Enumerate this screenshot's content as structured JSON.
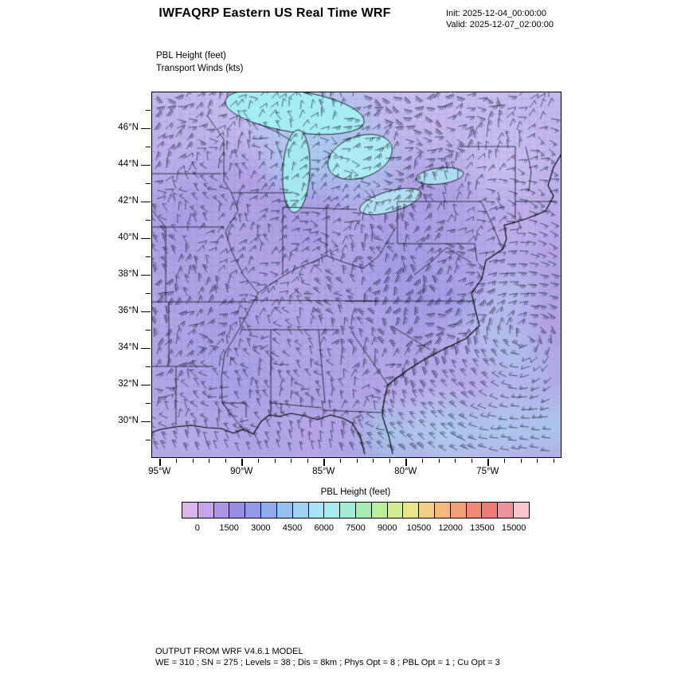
{
  "header": {
    "title": "IWFAQRP Eastern US Real Time WRF",
    "init": "Init: 2025-12-04_00:00:00",
    "valid": "Valid: 2025-12-07_02:00:00"
  },
  "plot": {
    "field_label_1": "PBL Height   (feet)",
    "field_label_2": "Transport Winds   (kts)"
  },
  "axes": {
    "y_ticks": [
      {
        "label": "46°N",
        "value": 46
      },
      {
        "label": "44°N",
        "value": 44
      },
      {
        "label": "42°N",
        "value": 42
      },
      {
        "label": "40°N",
        "value": 40
      },
      {
        "label": "38°N",
        "value": 38
      },
      {
        "label": "36°N",
        "value": 36
      },
      {
        "label": "34°N",
        "value": 34
      },
      {
        "label": "32°N",
        "value": 32
      },
      {
        "label": "30°N",
        "value": 30
      }
    ],
    "x_ticks": [
      {
        "label": "95°W",
        "value": 95
      },
      {
        "label": "90°W",
        "value": 90
      },
      {
        "label": "85°W",
        "value": 85
      },
      {
        "label": "80°W",
        "value": 80
      },
      {
        "label": "75°W",
        "value": 75
      }
    ]
  },
  "colorbar": {
    "title": "PBL Height  (feet)",
    "tick_labels": [
      "0",
      "1500",
      "3000",
      "4500",
      "6000",
      "7500",
      "9000",
      "10500",
      "12000",
      "13500",
      "15000"
    ],
    "colors": [
      "#dcb4ec",
      "#c4a4ea",
      "#ad96e6",
      "#9a8ee4",
      "#9199e8",
      "#8fabec",
      "#95c0f0",
      "#a0d2f4",
      "#abe2f4",
      "#a9ecee",
      "#a5ecd8",
      "#a8ecb4",
      "#bcec9e",
      "#d6ec92",
      "#ece48c",
      "#f0d086",
      "#f2b87e",
      "#f0a076",
      "#ee8a70",
      "#ec7b76",
      "#f0929e",
      "#f8c6ce"
    ]
  },
  "footer": {
    "line1": "OUTPUT FROM WRF V4.6.1 MODEL",
    "line2": "WE = 310 ; SN = 275 ; Levels = 38 ; Dis = 8km ; Phys Opt = 8 ; PBL Opt = 1 ; Cu Opt = 3"
  },
  "chart_data": {
    "type": "heatmap",
    "title": "IWFAQRP Eastern US Real Time WRF",
    "subtitle_left": [
      "PBL Height   (feet)",
      "Transport Winds   (kts)"
    ],
    "overlay": "wind barbs (Transport Winds, kts)",
    "x": {
      "ticks": [
        "95°W",
        "90°W",
        "85°W",
        "80°W",
        "75°W"
      ],
      "range_deg_west": [
        95.5,
        70.5
      ]
    },
    "y": {
      "ticks": [
        "30°N",
        "32°N",
        "34°N",
        "36°N",
        "38°N",
        "40°N",
        "42°N",
        "44°N",
        "46°N"
      ],
      "range_deg_north": [
        28,
        48
      ]
    },
    "value": {
      "name": "PBL Height",
      "units": "feet",
      "min": 0,
      "max": 15000,
      "contour_interval": 750
    },
    "colorbar_position": "bottom",
    "grid": false,
    "observed_regions": [
      {
        "region": "most land areas of the eastern US",
        "approx_value_ft": [
          500,
          2500
        ]
      },
      {
        "region": "Great Lakes (Superior, Michigan, Huron)",
        "approx_value_ft": [
          3000,
          6000
        ]
      },
      {
        "region": "Atlantic offshore band / southeast coastal waters",
        "approx_value_ft": [
          2500,
          5000
        ]
      },
      {
        "region": "wind barbs throughout domain",
        "approx_speed_kts": [
          10,
          35
        ]
      }
    ]
  }
}
